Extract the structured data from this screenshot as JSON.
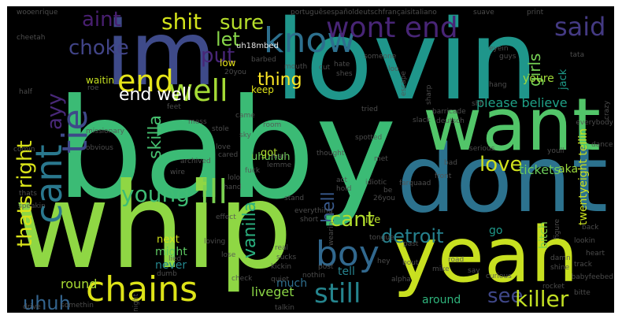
{
  "words": [
    {
      "text": "baby",
      "color": "#3bbb75"
    },
    {
      "text": "whip",
      "color": "#8fd744"
    },
    {
      "text": "lovin",
      "color": "#1f968b"
    },
    {
      "text": "dont",
      "color": "#2c728e"
    },
    {
      "text": "yeah",
      "color": "#c8e020"
    },
    {
      "text": "want",
      "color": "#52c569"
    },
    {
      "text": "im",
      "color": "#3e4a89"
    },
    {
      "text": "chains",
      "color": "#dde318"
    },
    {
      "text": "cant",
      "color": "#2a788e"
    },
    {
      "text": "tie",
      "color": "#3e4989"
    },
    {
      "text": "boy",
      "color": "#31688e"
    },
    {
      "text": "know",
      "color": "#2d708e"
    },
    {
      "text": "end",
      "color": "#e5e419"
    },
    {
      "text": "well",
      "color": "#a5db36"
    },
    {
      "text": "young",
      "color": "#3ebc74"
    },
    {
      "text": "ill",
      "color": "#7ad151"
    },
    {
      "text": "still",
      "color": "#25858e"
    },
    {
      "text": "wont end",
      "color": "#482576"
    },
    {
      "text": "said",
      "color": "#443a83"
    },
    {
      "text": "shit",
      "color": "#d2e21b"
    },
    {
      "text": "aint",
      "color": "#481f70"
    },
    {
      "text": "sure",
      "color": "#b5de2b"
    },
    {
      "text": "choke",
      "color": "#414487"
    },
    {
      "text": "put",
      "color": "#482677"
    },
    {
      "text": "let",
      "color": "#87d549"
    },
    {
      "text": "thats right",
      "color": "#d8e219"
    },
    {
      "text": "ayy",
      "color": "#482878"
    },
    {
      "text": "end well",
      "color": "#ffffff"
    },
    {
      "text": "skilla",
      "color": "#46c06f"
    },
    {
      "text": "vanilla",
      "color": "#2ab07f"
    },
    {
      "text": "hell",
      "color": "#38598c"
    },
    {
      "text": "thing",
      "color": "#fde725"
    },
    {
      "text": "love",
      "color": "#d0e11c"
    },
    {
      "text": "cant",
      "color": "#b2dd2d"
    },
    {
      "text": "detroit",
      "color": "#26818e"
    },
    {
      "text": "see",
      "color": "#3f4788"
    },
    {
      "text": "killer",
      "color": "#c2df23"
    },
    {
      "text": "uhuh",
      "color": "#33638d"
    },
    {
      "text": "girls",
      "color": "#75d054"
    },
    {
      "text": "please believe",
      "color": "#1fa187"
    },
    {
      "text": "tickets",
      "color": "#6ccd5a"
    },
    {
      "text": "twentyeight tellin",
      "color": "#cae11f"
    },
    {
      "text": "bitch",
      "color": "#7fd34e"
    },
    {
      "text": "youre",
      "color": "#a0da39"
    },
    {
      "text": "aka",
      "color": "#9bd93c"
    },
    {
      "text": "jack",
      "color": "#1e9b8a"
    },
    {
      "text": "uhuhuh",
      "color": "#6ece58"
    },
    {
      "text": "might",
      "color": "#5ec962"
    },
    {
      "text": "never",
      "color": "#24878e"
    },
    {
      "text": "next",
      "color": "#d0e11c"
    },
    {
      "text": "round",
      "color": "#a8db34"
    },
    {
      "text": "much",
      "color": "#2e6f8e"
    },
    {
      "text": "liveget",
      "color": "#8bd646"
    },
    {
      "text": "around",
      "color": "#2fb47c"
    },
    {
      "text": "tell",
      "color": "#26828e"
    },
    {
      "text": "ive",
      "color": "#b8de29"
    },
    {
      "text": "go",
      "color": "#1f998a"
    },
    {
      "text": "got",
      "color": "#b0dd2f"
    },
    {
      "text": "keep",
      "color": "#dfe318"
    },
    {
      "text": "waitin",
      "color": "#c5e021"
    },
    {
      "text": "low",
      "color": "#e7e419"
    },
    {
      "text": "uh18mbed",
      "color": "#ffffff"
    },
    {
      "text": "portuguêsespañoldeutschfrançaisitaliano",
      "color": "#ffffff"
    },
    {
      "text": "suave",
      "color": "#ffffff"
    },
    {
      "text": "print",
      "color": "#ffffff"
    },
    {
      "text": "guys",
      "color": "#ffffff"
    },
    {
      "text": "tata",
      "color": "#ffffff"
    },
    {
      "text": "woo",
      "color": "#ffffff"
    },
    {
      "text": "enrique",
      "color": "#ffffff"
    },
    {
      "text": "cheetah",
      "color": "#ffffff"
    },
    {
      "text": "roe",
      "color": "#ffffff"
    },
    {
      "text": "half",
      "color": "#ffffff"
    },
    {
      "text": "missionary",
      "color": "#ffffff"
    },
    {
      "text": "obvious",
      "color": "#ffffff"
    },
    {
      "text": "comin",
      "color": "#ffffff"
    },
    {
      "text": "archived",
      "color": "#ffffff"
    },
    {
      "text": "wire",
      "color": "#ffffff"
    },
    {
      "text": "speakin",
      "color": "#ffffff"
    },
    {
      "text": "thats",
      "color": "#ffffff"
    },
    {
      "text": "lied",
      "color": "#ffffff"
    },
    {
      "text": "dumb",
      "color": "#ffffff"
    },
    {
      "text": "drive",
      "color": "#ffffff"
    },
    {
      "text": "somethin",
      "color": "#ffffff"
    },
    {
      "text": "night",
      "color": "#ffffff"
    },
    {
      "text": "check",
      "color": "#ffffff"
    },
    {
      "text": "talkin",
      "color": "#ffffff"
    },
    {
      "text": "kickin",
      "color": "#ffffff"
    },
    {
      "text": "quiet",
      "color": "#ffffff"
    },
    {
      "text": "post",
      "color": "#ffffff"
    },
    {
      "text": "alpha",
      "color": "#ffffff"
    },
    {
      "text": "curious",
      "color": "#ffffff"
    },
    {
      "text": "babyfeebed",
      "color": "#ffffff"
    },
    {
      "text": "track",
      "color": "#ffffff"
    },
    {
      "text": "heart",
      "color": "#ffffff"
    },
    {
      "text": "lookin",
      "color": "#ffffff"
    },
    {
      "text": "back",
      "color": "#ffffff"
    },
    {
      "text": "figure",
      "color": "#ffffff"
    },
    {
      "text": "past",
      "color": "#ffffff"
    },
    {
      "text": "tongue",
      "color": "#ffffff"
    },
    {
      "text": "26you",
      "color": "#ffffff"
    },
    {
      "text": "idiotic",
      "color": "#ffffff"
    },
    {
      "text": "front",
      "color": "#ffffff"
    },
    {
      "text": "serious",
      "color": "#ffffff"
    },
    {
      "text": "dance",
      "color": "#ffffff"
    },
    {
      "text": "everybody",
      "color": "#ffffff"
    },
    {
      "text": "crazy",
      "color": "#ffffff"
    },
    {
      "text": "youll",
      "color": "#ffffff"
    },
    {
      "text": "farquaad",
      "color": "#ffffff"
    },
    {
      "text": "slack",
      "color": "#ffffff"
    },
    {
      "text": "deutsch",
      "color": "#ffffff"
    },
    {
      "text": "barricade",
      "color": "#ffffff"
    },
    {
      "text": "sharp",
      "color": "#ffffff"
    },
    {
      "text": "escape",
      "color": "#ffffff"
    },
    {
      "text": "spotted",
      "color": "#ffffff"
    },
    {
      "text": "tried",
      "color": "#ffffff"
    },
    {
      "text": "shh",
      "color": "#ffffff"
    },
    {
      "text": "eyein",
      "color": "#ffffff"
    },
    {
      "text": "hang",
      "color": "#ffffff"
    },
    {
      "text": "hate",
      "color": "#ffffff"
    },
    {
      "text": "shes",
      "color": "#ffffff"
    },
    {
      "text": "someone",
      "color": "#ffffff"
    },
    {
      "text": "loo",
      "color": "#ffffff"
    },
    {
      "text": "mouth",
      "color": "#ffffff"
    },
    {
      "text": "cut",
      "color": "#ffffff"
    },
    {
      "text": "barbed",
      "color": "#ffffff"
    },
    {
      "text": "20you",
      "color": "#ffffff"
    },
    {
      "text": "feet",
      "color": "#ffffff"
    },
    {
      "text": "came",
      "color": "#ffffff"
    },
    {
      "text": "room",
      "color": "#ffffff"
    },
    {
      "text": "lemme",
      "color": "#ffffff"
    },
    {
      "text": "man",
      "color": "#ffffff"
    },
    {
      "text": "thought",
      "color": "#ffffff"
    },
    {
      "text": "bad",
      "color": "#ffffff"
    },
    {
      "text": "met",
      "color": "#ffffff"
    },
    {
      "text": "fuck",
      "color": "#ffffff"
    },
    {
      "text": "stand",
      "color": "#ffffff"
    },
    {
      "text": "everything",
      "color": "#ffffff"
    },
    {
      "text": "short",
      "color": "#ffffff"
    },
    {
      "text": "act",
      "color": "#ffffff"
    },
    {
      "text": "hold",
      "color": "#ffffff"
    },
    {
      "text": "effect",
      "color": "#ffffff"
    },
    {
      "text": "wearin",
      "color": "#ffffff"
    },
    {
      "text": "nothin",
      "color": "#ffffff"
    },
    {
      "text": "be",
      "color": "#ffffff"
    },
    {
      "text": "mess",
      "color": "#ffffff"
    },
    {
      "text": "sky",
      "color": "#ffffff"
    },
    {
      "text": "stole",
      "color": "#ffffff"
    },
    {
      "text": "love",
      "color": "#ffffff"
    },
    {
      "text": "cared",
      "color": "#ffffff"
    },
    {
      "text": "hey",
      "color": "#ffffff"
    },
    {
      "text": "bout",
      "color": "#ffffff"
    },
    {
      "text": "loving",
      "color": "#ffffff"
    },
    {
      "text": "lose",
      "color": "#ffffff"
    },
    {
      "text": "lolo",
      "color": "#ffffff"
    },
    {
      "text": "hand",
      "color": "#ffffff"
    },
    {
      "text": "real",
      "color": "#ffffff"
    },
    {
      "text": "sucks",
      "color": "#ffffff"
    },
    {
      "text": "damn",
      "color": "#ffffff"
    },
    {
      "text": "shine",
      "color": "#ffffff"
    },
    {
      "text": "mike",
      "color": "#ffffff"
    },
    {
      "text": "road",
      "color": "#ffffff"
    },
    {
      "text": "say",
      "color": "#ffffff"
    },
    {
      "text": "rocket",
      "color": "#ffffff"
    },
    {
      "text": "bitte",
      "color": "#ffffff"
    },
    {
      "text": "carry",
      "color": "#ffffff"
    },
    {
      "text": "uhh",
      "color": "#ffffff"
    }
  ]
}
